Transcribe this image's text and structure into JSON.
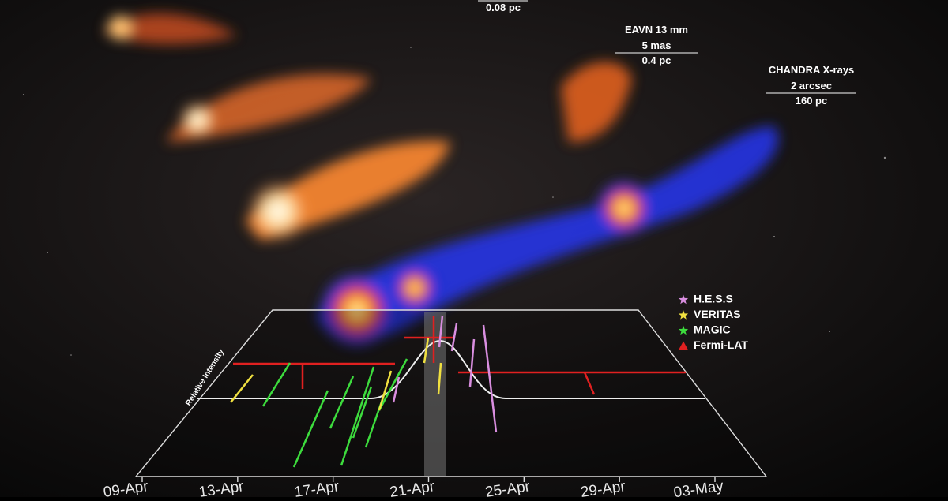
{
  "scale_bars": [
    {
      "size": "0.08 pc"
    },
    {
      "instrument": "EAVN 13 mm",
      "angle": "5 mas",
      "size": "0.4 pc"
    },
    {
      "instrument": "CHANDRA X-rays",
      "angle": "2 arcsec",
      "size": "160 pc"
    }
  ],
  "plot": {
    "y_label": "Relative Intensity",
    "x_labels": [
      "09-Apr",
      "13-Apr",
      "17-Apr",
      "21-Apr",
      "25-Apr",
      "29-Apr",
      "03-May"
    ],
    "legend": [
      {
        "name": "H.E.S.S",
        "color": "#d98ee0"
      },
      {
        "name": "VERITAS",
        "color": "#f0e040"
      },
      {
        "name": "MAGIC",
        "color": "#3ddc3d"
      },
      {
        "name": "Fermi-LAT",
        "color": "#e02020"
      }
    ]
  }
}
